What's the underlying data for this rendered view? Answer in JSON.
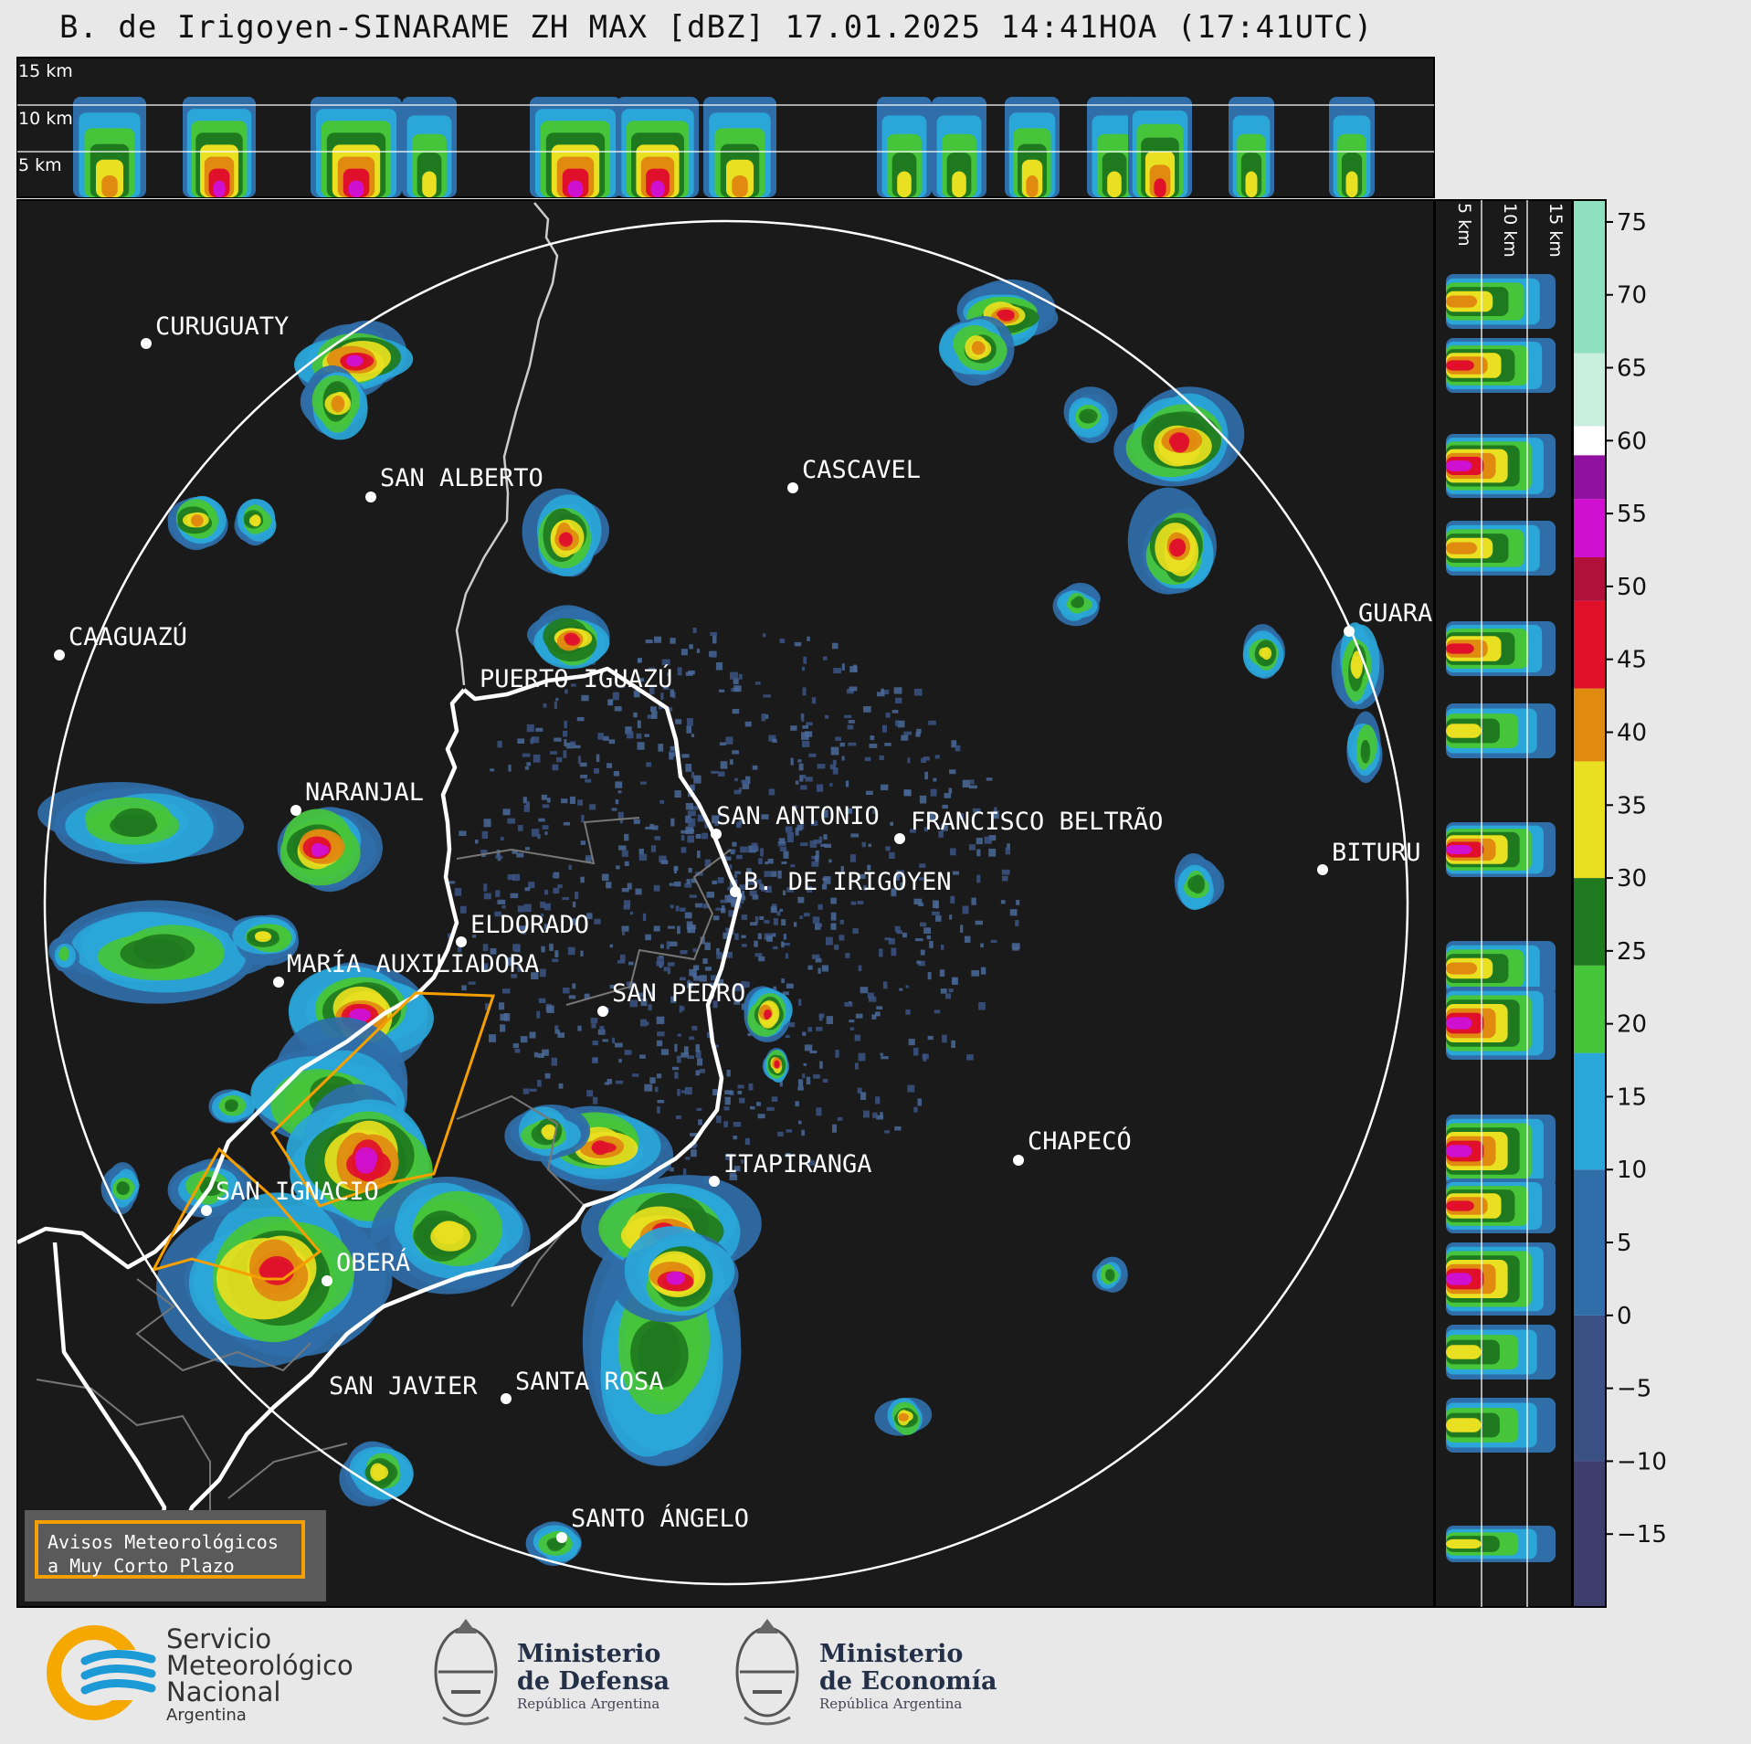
{
  "title": "B. de Irigoyen-SINARAME ZH MAX [dBZ] 17.01.2025 14:41HOA (17:41UTC)",
  "top_panel_labels": [
    "15 km",
    "10 km",
    "5 km"
  ],
  "side_panel_labels": [
    "5 km",
    "10 km",
    "15 km"
  ],
  "colorbar": {
    "ticks": [
      "75",
      "70",
      "65",
      "60",
      "55",
      "50",
      "45",
      "40",
      "35",
      "30",
      "25",
      "20",
      "15",
      "10",
      "5",
      "0",
      "−5",
      "−10",
      "−15"
    ],
    "colors": {
      "blue_low": "#3b4a80",
      "blue_mid": "#2f6ea8",
      "cyan": "#2aa6d8",
      "green": "#46c43a",
      "dark_green": "#1f7a1f",
      "yellow": "#e8e020",
      "orange": "#e08a10",
      "red": "#e0102a",
      "magenta": "#d010d0",
      "purple": "#9010a0",
      "white": "#ffffff",
      "mint": "#8ee0c0"
    }
  },
  "cities": [
    {
      "name": "CURUGUATY"
    },
    {
      "name": "SAN ALBERTO"
    },
    {
      "name": "CASCAVEL"
    },
    {
      "name": "CAAGUAZÚ"
    },
    {
      "name": "GUARA"
    },
    {
      "name": "PUERTO IGUAZÚ"
    },
    {
      "name": "NARANJAL"
    },
    {
      "name": "SAN ANTONIO"
    },
    {
      "name": "FRANCISCO BELTRÃO"
    },
    {
      "name": "BITURU"
    },
    {
      "name": "B. DE IRIGOYEN"
    },
    {
      "name": "ELDORADO"
    },
    {
      "name": "MARÍA AUXILIADORA"
    },
    {
      "name": "SAN PEDRO"
    },
    {
      "name": "CHAPECÓ"
    },
    {
      "name": "ITAPIRANGA"
    },
    {
      "name": "SAN IGNACIO"
    },
    {
      "name": "OBERÁ"
    },
    {
      "name": "SAN JAVIER"
    },
    {
      "name": "SANTA ROSA"
    },
    {
      "name": "SANTO ÁNGELO"
    }
  ],
  "avisos_label": "Avisos Meteorológicos\na Muy Corto Plazo",
  "footer": {
    "smn": {
      "line1": "Servicio",
      "line2": "Meteorológico",
      "line3": "Nacional",
      "country": "Argentina"
    },
    "defensa": {
      "line1": "Ministerio",
      "line2": "de Defensa",
      "line3": "República Argentina"
    },
    "economia": {
      "line1": "Ministerio",
      "line2": "de Economía",
      "line3": "República Argentina"
    }
  }
}
